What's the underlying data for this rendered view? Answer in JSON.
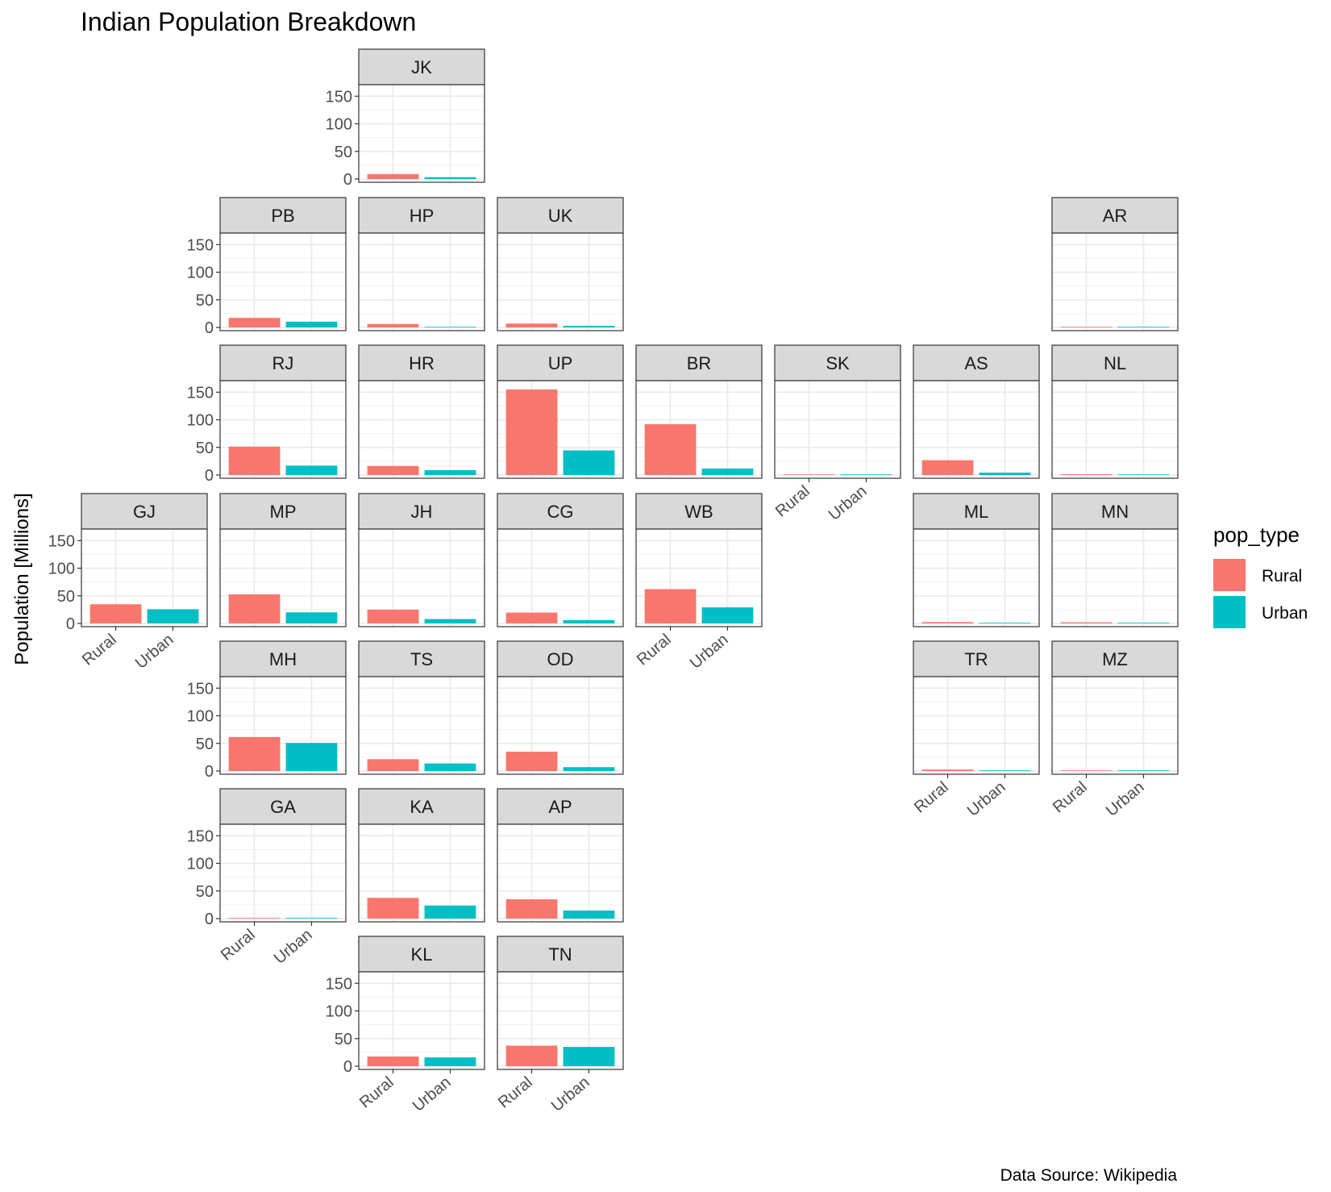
{
  "chart_data": {
    "type": "bar",
    "title": "Indian Population Breakdown",
    "ylabel": "Population [Millions]",
    "caption": "Data Source: Wikipedia",
    "ylim": [
      0,
      165
    ],
    "yticks": [
      0,
      50,
      100,
      150
    ],
    "categories": [
      "Rural",
      "Urban"
    ],
    "legend": {
      "title": "pop_type",
      "entries": [
        {
          "name": "Rural",
          "color": "#F8766D"
        },
        {
          "name": "Urban",
          "color": "#00BFC4"
        }
      ]
    },
    "facets": [
      {
        "state": "JK",
        "row": 0,
        "col": 2,
        "values": [
          9,
          3.4
        ]
      },
      {
        "state": "PB",
        "row": 1,
        "col": 1,
        "values": [
          17.3,
          10.4
        ]
      },
      {
        "state": "HP",
        "row": 1,
        "col": 2,
        "values": [
          6.2,
          0.7
        ]
      },
      {
        "state": "UK",
        "row": 1,
        "col": 3,
        "values": [
          7,
          3
        ]
      },
      {
        "state": "AR",
        "row": 1,
        "col": 8,
        "values": [
          1.1,
          0.3
        ]
      },
      {
        "state": "RJ",
        "row": 2,
        "col": 1,
        "values": [
          51.5,
          17
        ]
      },
      {
        "state": "HR",
        "row": 2,
        "col": 2,
        "values": [
          16.5,
          8.8
        ]
      },
      {
        "state": "UP",
        "row": 2,
        "col": 3,
        "values": [
          155,
          44.5
        ]
      },
      {
        "state": "BR",
        "row": 2,
        "col": 4,
        "values": [
          92,
          11.8
        ]
      },
      {
        "state": "SK",
        "row": 2,
        "col": 5,
        "values": [
          0.46,
          0.15
        ]
      },
      {
        "state": "AS",
        "row": 2,
        "col": 6,
        "values": [
          26.8,
          4.4
        ]
      },
      {
        "state": "NL",
        "row": 2,
        "col": 8,
        "values": [
          1.4,
          0.57
        ]
      },
      {
        "state": "GJ",
        "row": 3,
        "col": 0,
        "values": [
          34.7,
          25.7
        ]
      },
      {
        "state": "MP",
        "row": 3,
        "col": 1,
        "values": [
          52.6,
          20
        ]
      },
      {
        "state": "JH",
        "row": 3,
        "col": 2,
        "values": [
          25,
          7.9
        ]
      },
      {
        "state": "CG",
        "row": 3,
        "col": 3,
        "values": [
          19.6,
          5.9
        ]
      },
      {
        "state": "WB",
        "row": 3,
        "col": 4,
        "values": [
          62.2,
          29.1
        ]
      },
      {
        "state": "ML",
        "row": 3,
        "col": 6,
        "values": [
          2.4,
          0.6
        ]
      },
      {
        "state": "MN",
        "row": 3,
        "col": 8,
        "values": [
          2,
          0.8
        ]
      },
      {
        "state": "MH",
        "row": 4,
        "col": 1,
        "values": [
          61.6,
          50.8
        ]
      },
      {
        "state": "TS",
        "row": 4,
        "col": 2,
        "values": [
          21.4,
          13.6
        ]
      },
      {
        "state": "OD",
        "row": 4,
        "col": 3,
        "values": [
          35,
          7
        ]
      },
      {
        "state": "TR",
        "row": 4,
        "col": 6,
        "values": [
          2.7,
          0.96
        ]
      },
      {
        "state": "MZ",
        "row": 4,
        "col": 8,
        "values": [
          0.53,
          0.57
        ]
      },
      {
        "state": "GA",
        "row": 5,
        "col": 1,
        "values": [
          0.55,
          0.91
        ]
      },
      {
        "state": "KA",
        "row": 5,
        "col": 2,
        "values": [
          37.5,
          23.6
        ]
      },
      {
        "state": "AP",
        "row": 5,
        "col": 3,
        "values": [
          35,
          14.6
        ]
      },
      {
        "state": "KL",
        "row": 6,
        "col": 2,
        "values": [
          17.5,
          15.9
        ]
      },
      {
        "state": "TN",
        "row": 6,
        "col": 3,
        "values": [
          37.2,
          34.9
        ]
      }
    ],
    "x_axis_panels": [
      "GJ",
      "WB",
      "SK",
      "TR",
      "MZ",
      "GA",
      "KL",
      "TN"
    ],
    "grid": true,
    "legend_position": "right"
  }
}
